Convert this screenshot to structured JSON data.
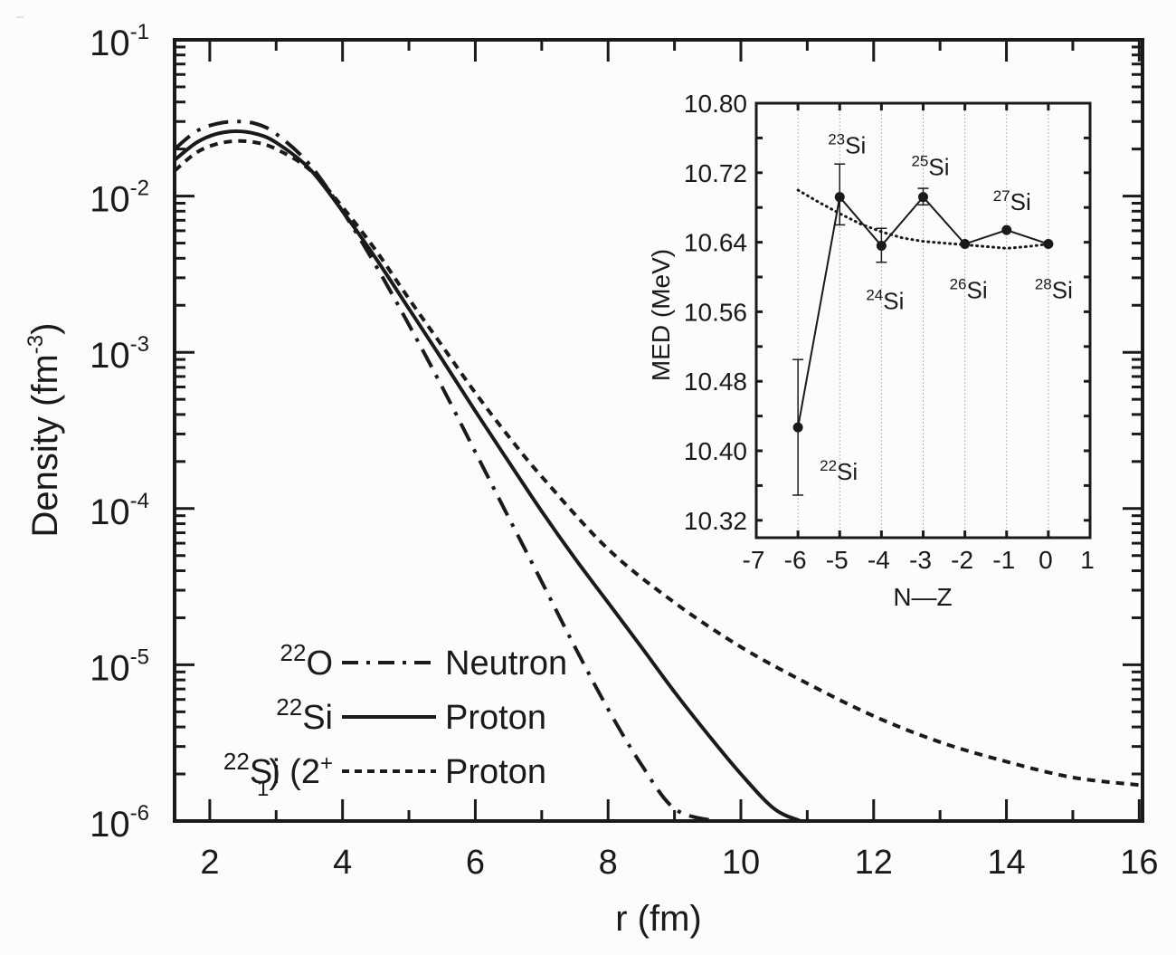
{
  "chart_data": [
    {
      "type": "line",
      "name": "main",
      "title": "",
      "xlabel": "r (fm)",
      "ylabel": "Density (fm⁻³)",
      "ylabel_parts": {
        "text": "Density (fm",
        "sup": "-3",
        "close": ")"
      },
      "xlim": [
        1.47,
        16.05
      ],
      "ylim": [
        1e-06,
        0.1
      ],
      "yscale": "log",
      "grid": false,
      "xticks": [
        2,
        4,
        6,
        8,
        10,
        12,
        14,
        16
      ],
      "yticks": [
        {
          "base": "10",
          "exp": "-1",
          "value": 0.1
        },
        {
          "base": "10",
          "exp": "-2",
          "value": 0.01
        },
        {
          "base": "10",
          "exp": "-3",
          "value": 0.001
        },
        {
          "base": "10",
          "exp": "-4",
          "value": 0.0001
        },
        {
          "base": "10",
          "exp": "-5",
          "value": 1e-05
        },
        {
          "base": "10",
          "exp": "-6",
          "value": 1e-06
        }
      ],
      "legend_position": "bottom-left",
      "series": [
        {
          "name": "22O Neutron",
          "nucleus": {
            "mass": "22",
            "symbol": "O",
            "state": ""
          },
          "label": "Neutron",
          "style": "dash-dot",
          "x": [
            1.47,
            1.8,
            2.1,
            2.4,
            2.7,
            3.0,
            3.5,
            4.0,
            4.5,
            5.0,
            5.5,
            6.0,
            6.5,
            7.0,
            7.5,
            8.0,
            8.5,
            9.0,
            9.6
          ],
          "y": [
            0.02,
            0.026,
            0.029,
            0.03,
            0.029,
            0.025,
            0.016,
            0.008,
            0.0036,
            0.0015,
            0.0006,
            0.00023,
            8.8e-05,
            3.4e-05,
            1.3e-05,
            5.2e-06,
            2.3e-06,
            1.2e-06,
            1e-06
          ]
        },
        {
          "name": "22Si Proton",
          "nucleus": {
            "mass": "22",
            "symbol": "Si",
            "state": ""
          },
          "label": "Proton",
          "style": "solid",
          "x": [
            1.47,
            1.8,
            2.1,
            2.4,
            2.7,
            3.0,
            3.5,
            4.0,
            4.5,
            5.0,
            5.5,
            6.0,
            6.5,
            7.0,
            7.5,
            8.0,
            8.5,
            9.0,
            9.5,
            10.0,
            10.5,
            10.9
          ],
          "y": [
            0.017,
            0.022,
            0.025,
            0.026,
            0.025,
            0.022,
            0.015,
            0.008,
            0.004,
            0.0019,
            0.0009,
            0.00042,
            0.0002,
            9.6e-05,
            4.8e-05,
            2.5e-05,
            1.3e-05,
            6.7e-06,
            3.6e-06,
            2e-06,
            1.2e-06,
            1e-06
          ]
        },
        {
          "name": "22Si(2+1) Proton",
          "nucleus": {
            "mass": "22",
            "symbol": "Si",
            "state": "(2",
            "state_sup": "+",
            "state_sub": "1",
            "state_close": ")"
          },
          "label": "Proton",
          "style": "dashed",
          "x": [
            1.47,
            1.8,
            2.1,
            2.4,
            2.7,
            3.0,
            3.5,
            4.0,
            4.5,
            5.0,
            5.5,
            6.0,
            6.5,
            7.0,
            8.0,
            9.0,
            10.0,
            11.0,
            12.0,
            13.0,
            14.0,
            15.0,
            16.0
          ],
          "y": [
            0.0145,
            0.019,
            0.0215,
            0.0225,
            0.022,
            0.02,
            0.0148,
            0.0085,
            0.0045,
            0.0022,
            0.0011,
            0.00055,
            0.00029,
            0.00016,
            5.5e-05,
            2.5e-05,
            1.3e-05,
            7.6e-06,
            4.7e-06,
            3.2e-06,
            2.4e-06,
            1.9e-06,
            1.7e-06
          ]
        }
      ]
    },
    {
      "type": "scatter",
      "name": "inset",
      "title": "",
      "xlabel": "N—Z",
      "ylabel": "MED (MeV)",
      "xlim": [
        -7,
        1
      ],
      "ylim": [
        10.3,
        10.8
      ],
      "grid": "vertical-dotted",
      "xticks": [
        "-7",
        "-6",
        "-5",
        "-4",
        "-3",
        "-2",
        "-1",
        "0",
        "1"
      ],
      "yticks": [
        "10.32",
        "10.40",
        "10.48",
        "10.56",
        "10.64",
        "10.72",
        "10.80"
      ],
      "points": [
        {
          "x": -6,
          "y": 10.427,
          "err_low": 10.349,
          "err_high": 10.505,
          "label_mass": "22",
          "label_symbol": "Si"
        },
        {
          "x": -5,
          "y": 10.692,
          "err_low": 10.66,
          "err_high": 10.73,
          "label_mass": "23",
          "label_symbol": "Si"
        },
        {
          "x": -4,
          "y": 10.636,
          "err_low": 10.617,
          "err_high": 10.656,
          "label_mass": "24",
          "label_symbol": "Si"
        },
        {
          "x": -3,
          "y": 10.692,
          "err_low": 10.683,
          "err_high": 10.702,
          "label_mass": "25",
          "label_symbol": "Si"
        },
        {
          "x": -2,
          "y": 10.638,
          "label_mass": "26",
          "label_symbol": "Si"
        },
        {
          "x": -1,
          "y": 10.654,
          "label_mass": "27",
          "label_symbol": "Si"
        },
        {
          "x": 0,
          "y": 10.638,
          "label_mass": "28",
          "label_symbol": "Si"
        }
      ],
      "trend": {
        "style": "dotted",
        "x": [
          -6,
          -5.5,
          -5,
          -4.5,
          -4,
          -3.5,
          -3,
          -2.5,
          -2,
          -1.5,
          -1,
          -0.5,
          0
        ],
        "y": [
          10.7,
          10.686,
          10.673,
          10.661,
          10.652,
          10.645,
          10.641,
          10.639,
          10.637,
          10.635,
          10.633,
          10.635,
          10.638
        ]
      }
    }
  ]
}
